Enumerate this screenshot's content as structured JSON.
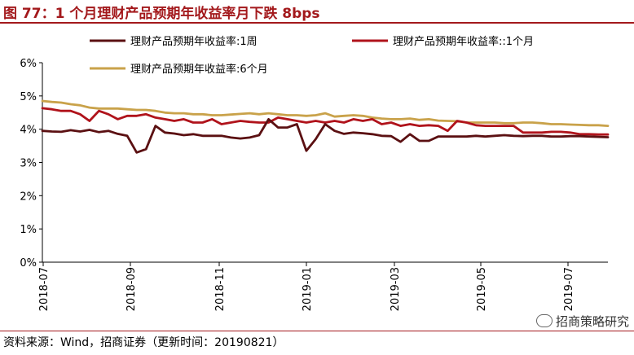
{
  "title": "图 77：1 个月理财产品预期年收益率月下跌 8bps",
  "source": "资料来源：Wind，招商证券（更新时间：20190821）",
  "watermark": "招商策略研究",
  "chart_data": {
    "type": "line",
    "x_ticks": [
      "2018-07",
      "2018-09",
      "2018-11",
      "2019-01",
      "2019-03",
      "2019-05",
      "2019-07"
    ],
    "ylim": [
      0,
      6
    ],
    "y_ticks": [
      "0%",
      "1%",
      "2%",
      "3%",
      "4%",
      "5%",
      "6%"
    ],
    "grid": false,
    "legend_position": "top",
    "series": [
      {
        "name": "理财产品预期年收益率:1周",
        "color": "#5b1012",
        "values": [
          3.95,
          3.93,
          3.92,
          3.97,
          3.93,
          3.98,
          3.91,
          3.95,
          3.86,
          3.8,
          3.3,
          3.4,
          4.1,
          3.9,
          3.87,
          3.82,
          3.85,
          3.8,
          3.8,
          3.8,
          3.75,
          3.72,
          3.75,
          3.82,
          4.3,
          4.05,
          4.05,
          4.15,
          3.35,
          3.7,
          4.15,
          3.95,
          3.86,
          3.9,
          3.88,
          3.85,
          3.8,
          3.79,
          3.62,
          3.85,
          3.65,
          3.65,
          3.78,
          3.78,
          3.78,
          3.78,
          3.8,
          3.78,
          3.8,
          3.82,
          3.8,
          3.79,
          3.8,
          3.8,
          3.78,
          3.78,
          3.79,
          3.79,
          3.78,
          3.77,
          3.76
        ]
      },
      {
        "name": "理财产品预期年收益率::1个月",
        "color": "#b0131b",
        "values": [
          4.63,
          4.6,
          4.55,
          4.55,
          4.45,
          4.25,
          4.55,
          4.45,
          4.3,
          4.4,
          4.4,
          4.45,
          4.35,
          4.3,
          4.25,
          4.3,
          4.2,
          4.2,
          4.3,
          4.15,
          4.2,
          4.25,
          4.22,
          4.2,
          4.2,
          4.35,
          4.3,
          4.25,
          4.2,
          4.25,
          4.2,
          4.25,
          4.2,
          4.3,
          4.25,
          4.3,
          4.15,
          4.2,
          4.1,
          4.15,
          4.1,
          4.12,
          4.1,
          3.95,
          4.25,
          4.2,
          4.12,
          4.1,
          4.1,
          4.1,
          4.1,
          3.9,
          3.9,
          3.9,
          3.92,
          3.92,
          3.9,
          3.85,
          3.85,
          3.84,
          3.84
        ]
      },
      {
        "name": "理财产品预期年收益率:6个月",
        "color": "#c9a24a",
        "values": [
          4.85,
          4.82,
          4.8,
          4.75,
          4.72,
          4.65,
          4.62,
          4.62,
          4.62,
          4.6,
          4.58,
          4.58,
          4.55,
          4.5,
          4.48,
          4.48,
          4.45,
          4.45,
          4.42,
          4.42,
          4.44,
          4.46,
          4.48,
          4.45,
          4.48,
          4.45,
          4.42,
          4.42,
          4.4,
          4.42,
          4.48,
          4.38,
          4.4,
          4.42,
          4.4,
          4.35,
          4.32,
          4.3,
          4.3,
          4.32,
          4.28,
          4.3,
          4.26,
          4.25,
          4.24,
          4.2,
          4.2,
          4.2,
          4.2,
          4.18,
          4.18,
          4.2,
          4.2,
          4.18,
          4.15,
          4.15,
          4.14,
          4.13,
          4.12,
          4.12,
          4.1
        ]
      }
    ]
  }
}
